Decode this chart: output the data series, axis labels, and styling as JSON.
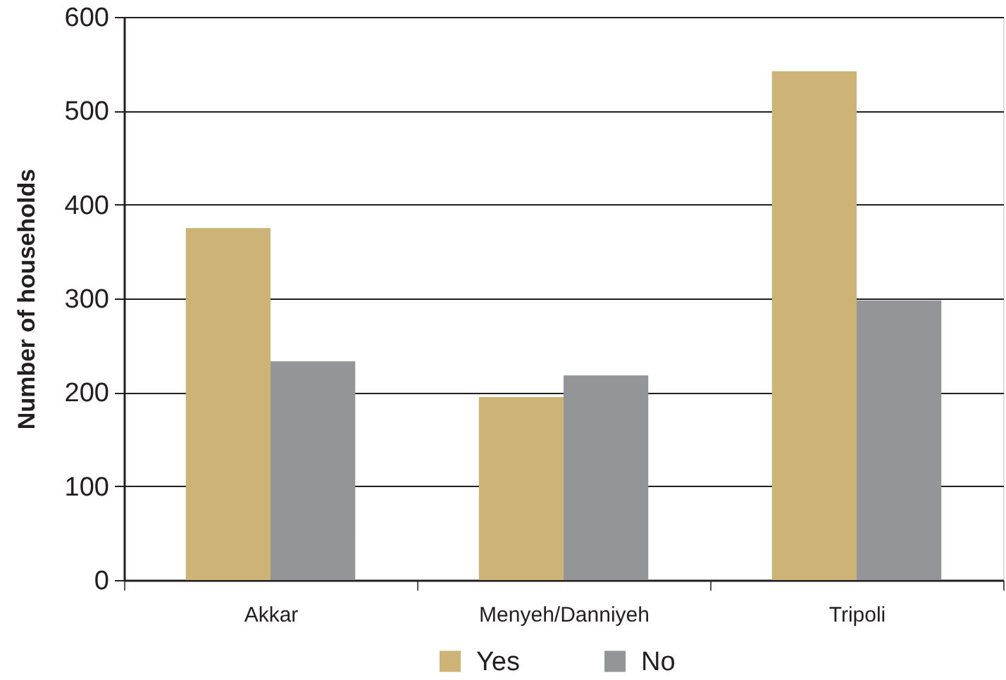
{
  "chart_data": {
    "type": "bar",
    "ylabel": "Number of households",
    "categories": [
      "Akkar",
      "Menyeh/Danniyeh",
      "Tripoli"
    ],
    "series": [
      {
        "name": "Yes",
        "color": "#cdb476",
        "values": [
          375,
          195,
          542
        ]
      },
      {
        "name": "No",
        "color": "#949599",
        "values": [
          233,
          218,
          298
        ]
      }
    ],
    "ylim": [
      0,
      600
    ],
    "yticks": [
      0,
      100,
      200,
      300,
      400,
      500,
      600
    ],
    "grid": "y",
    "legend": "bottom"
  }
}
